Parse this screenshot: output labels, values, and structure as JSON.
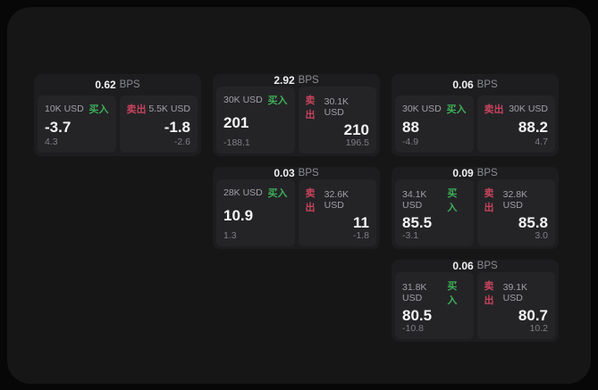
{
  "labels": {
    "bps_unit": "BPS",
    "buy": "买入",
    "sell": "卖出"
  },
  "colors": {
    "buy_green": "#3eae58",
    "sell_red": "#c8435c"
  },
  "cards": [
    {
      "bps": "0.62",
      "buy": {
        "amount": "10K USD",
        "price": "-3.7",
        "change": "4.3"
      },
      "sell": {
        "amount": "5.5K USD",
        "price": "-1.8",
        "change": "-2.6"
      }
    },
    {
      "bps": "2.92",
      "buy": {
        "amount": "30K USD",
        "price": "201",
        "change": "-188.1"
      },
      "sell": {
        "amount": "30.1K USD",
        "price": "210",
        "change": "196.5"
      }
    },
    {
      "bps": "0.06",
      "buy": {
        "amount": "30K USD",
        "price": "88",
        "change": "-4.9"
      },
      "sell": {
        "amount": "30K USD",
        "price": "88.2",
        "change": "4.7"
      }
    },
    {
      "bps": "0.03",
      "buy": {
        "amount": "28K USD",
        "price": "10.9",
        "change": "1.3"
      },
      "sell": {
        "amount": "32.6K USD",
        "price": "11",
        "change": "-1.8"
      }
    },
    {
      "bps": "0.09",
      "buy": {
        "amount": "34.1K USD",
        "price": "85.5",
        "change": "-3.1"
      },
      "sell": {
        "amount": "32.8K USD",
        "price": "85.8",
        "change": "3.0"
      }
    },
    {
      "bps": "0.06",
      "buy": {
        "amount": "31.8K USD",
        "price": "80.5",
        "change": "-10.8"
      },
      "sell": {
        "amount": "39.1K USD",
        "price": "80.7",
        "change": "10.2"
      }
    }
  ]
}
